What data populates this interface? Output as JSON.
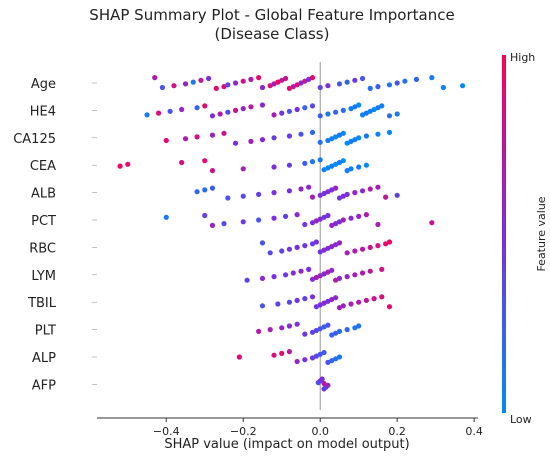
{
  "chart_data": {
    "type": "scatter",
    "title_line1": "SHAP Summary Plot - Global Feature Importance",
    "title_line2": "(Disease Class)",
    "xlabel": "SHAP value (impact on model output)",
    "xlim": [
      -0.58,
      0.41
    ],
    "x_ticks": [
      -0.4,
      -0.2,
      0.0,
      0.2,
      0.4
    ],
    "x_tick_labels": [
      "−0.4",
      "−0.2",
      "0.0",
      "0.2",
      "0.4"
    ],
    "colorbar": {
      "high_label": "High",
      "low_label": "Low",
      "title": "Feature value",
      "high_color": "#ff0052",
      "low_color": "#008bfb"
    },
    "features": [
      {
        "name": "Age",
        "points": [
          [
            -0.43,
            0.7
          ],
          [
            -0.41,
            0.3
          ],
          [
            -0.38,
            0.8
          ],
          [
            -0.35,
            0.6
          ],
          [
            -0.33,
            0.1
          ],
          [
            -0.31,
            0.75
          ],
          [
            -0.29,
            0.5
          ],
          [
            -0.27,
            0.9
          ],
          [
            -0.25,
            0.85
          ],
          [
            -0.24,
            0.4
          ],
          [
            -0.22,
            0.6
          ],
          [
            -0.2,
            0.8
          ],
          [
            -0.18,
            0.7
          ],
          [
            -0.16,
            0.9
          ],
          [
            -0.15,
            0.55
          ],
          [
            -0.13,
            0.85
          ],
          [
            -0.12,
            0.65
          ],
          [
            -0.11,
            0.95
          ],
          [
            -0.1,
            0.75
          ],
          [
            -0.09,
            0.8
          ],
          [
            -0.08,
            0.9
          ],
          [
            -0.07,
            0.7
          ],
          [
            -0.06,
            0.85
          ],
          [
            -0.05,
            0.6
          ],
          [
            -0.04,
            0.75
          ],
          [
            -0.03,
            0.5
          ],
          [
            -0.02,
            0.9
          ],
          [
            0.0,
            0.4
          ],
          [
            0.02,
            0.5
          ],
          [
            0.05,
            0.3
          ],
          [
            0.07,
            0.2
          ],
          [
            0.09,
            0.45
          ],
          [
            0.11,
            0.3
          ],
          [
            0.13,
            0.15
          ],
          [
            0.15,
            0.25
          ],
          [
            0.18,
            0.1
          ],
          [
            0.2,
            0.3
          ],
          [
            0.22,
            0.15
          ],
          [
            0.25,
            0.2
          ],
          [
            0.29,
            0.1
          ],
          [
            0.32,
            0.05
          ],
          [
            0.37,
            0.0
          ]
        ]
      },
      {
        "name": "HE4",
        "points": [
          [
            -0.45,
            0.1
          ],
          [
            -0.42,
            0.85
          ],
          [
            -0.39,
            0.3
          ],
          [
            -0.36,
            0.6
          ],
          [
            -0.32,
            0.2
          ],
          [
            -0.3,
            0.9
          ],
          [
            -0.28,
            0.5
          ],
          [
            -0.26,
            0.7
          ],
          [
            -0.24,
            0.35
          ],
          [
            -0.22,
            0.8
          ],
          [
            -0.2,
            0.6
          ],
          [
            -0.18,
            0.75
          ],
          [
            -0.15,
            0.55
          ],
          [
            -0.12,
            0.65
          ],
          [
            -0.1,
            0.45
          ],
          [
            -0.08,
            0.3
          ],
          [
            -0.06,
            0.5
          ],
          [
            -0.04,
            0.2
          ],
          [
            -0.02,
            0.35
          ],
          [
            0.0,
            0.25
          ],
          [
            0.02,
            0.1
          ],
          [
            0.04,
            0.2
          ],
          [
            0.06,
            0.15
          ],
          [
            0.08,
            0.05
          ],
          [
            0.09,
            0.1
          ],
          [
            0.1,
            0.0
          ],
          [
            0.11,
            0.05
          ],
          [
            0.12,
            0.1
          ],
          [
            0.13,
            0.05
          ],
          [
            0.14,
            0.0
          ],
          [
            0.15,
            0.1
          ],
          [
            0.16,
            0.05
          ],
          [
            0.18,
            0.15
          ],
          [
            0.2,
            0.1
          ]
        ]
      },
      {
        "name": "CA125",
        "points": [
          [
            -0.4,
            0.9
          ],
          [
            -0.35,
            0.7
          ],
          [
            -0.32,
            0.85
          ],
          [
            -0.28,
            0.6
          ],
          [
            -0.25,
            0.8
          ],
          [
            -0.22,
            0.5
          ],
          [
            -0.18,
            0.65
          ],
          [
            -0.15,
            0.55
          ],
          [
            -0.12,
            0.4
          ],
          [
            -0.08,
            0.45
          ],
          [
            -0.05,
            0.3
          ],
          [
            -0.02,
            0.2
          ],
          [
            0.0,
            0.15
          ],
          [
            0.02,
            0.1
          ],
          [
            0.03,
            0.05
          ],
          [
            0.04,
            0.0
          ],
          [
            0.05,
            0.1
          ],
          [
            0.06,
            0.05
          ],
          [
            0.07,
            0.0
          ],
          [
            0.08,
            0.1
          ],
          [
            0.09,
            0.05
          ],
          [
            0.1,
            0.0
          ],
          [
            0.12,
            0.1
          ],
          [
            0.15,
            0.05
          ],
          [
            0.18,
            0.0
          ]
        ]
      },
      {
        "name": "CEA",
        "points": [
          [
            -0.52,
            0.95
          ],
          [
            -0.5,
            0.9
          ],
          [
            -0.36,
            0.85
          ],
          [
            -0.3,
            0.9
          ],
          [
            -0.28,
            0.8
          ],
          [
            -0.2,
            0.65
          ],
          [
            -0.12,
            0.5
          ],
          [
            -0.08,
            0.4
          ],
          [
            -0.04,
            0.25
          ],
          [
            -0.02,
            0.15
          ],
          [
            0.0,
            0.1
          ],
          [
            0.01,
            0.05
          ],
          [
            0.02,
            0.0
          ],
          [
            0.03,
            0.05
          ],
          [
            0.04,
            0.0
          ],
          [
            0.05,
            0.05
          ],
          [
            0.06,
            0.0
          ],
          [
            0.07,
            0.1
          ],
          [
            0.08,
            0.05
          ],
          [
            0.1,
            0.1
          ],
          [
            0.12,
            0.0
          ]
        ]
      },
      {
        "name": "ALB",
        "points": [
          [
            -0.32,
            0.2
          ],
          [
            -0.3,
            0.15
          ],
          [
            -0.28,
            0.25
          ],
          [
            -0.24,
            0.3
          ],
          [
            -0.2,
            0.35
          ],
          [
            -0.16,
            0.4
          ],
          [
            -0.12,
            0.5
          ],
          [
            -0.08,
            0.5
          ],
          [
            -0.05,
            0.6
          ],
          [
            -0.03,
            0.55
          ],
          [
            -0.02,
            0.65
          ],
          [
            0.0,
            0.5
          ],
          [
            0.01,
            0.45
          ],
          [
            0.02,
            0.55
          ],
          [
            0.03,
            0.5
          ],
          [
            0.04,
            0.6
          ],
          [
            0.05,
            0.45
          ],
          [
            0.06,
            0.55
          ],
          [
            0.07,
            0.5
          ],
          [
            0.09,
            0.6
          ],
          [
            0.11,
            0.55
          ],
          [
            0.13,
            0.7
          ],
          [
            0.15,
            0.65
          ],
          [
            0.17,
            0.75
          ],
          [
            0.2,
            0.4
          ]
        ]
      },
      {
        "name": "PCT",
        "points": [
          [
            -0.4,
            0.1
          ],
          [
            -0.3,
            0.4
          ],
          [
            -0.28,
            0.6
          ],
          [
            -0.25,
            0.35
          ],
          [
            -0.2,
            0.45
          ],
          [
            -0.16,
            0.3
          ],
          [
            -0.12,
            0.5
          ],
          [
            -0.09,
            0.4
          ],
          [
            -0.06,
            0.55
          ],
          [
            -0.04,
            0.45
          ],
          [
            -0.02,
            0.5
          ],
          [
            -0.01,
            0.6
          ],
          [
            0.0,
            0.55
          ],
          [
            0.01,
            0.45
          ],
          [
            0.02,
            0.5
          ],
          [
            0.03,
            0.6
          ],
          [
            0.04,
            0.55
          ],
          [
            0.05,
            0.5
          ],
          [
            0.06,
            0.65
          ],
          [
            0.08,
            0.55
          ],
          [
            0.1,
            0.6
          ],
          [
            0.12,
            0.7
          ],
          [
            0.15,
            0.65
          ],
          [
            0.29,
            0.8
          ]
        ]
      },
      {
        "name": "RBC",
        "points": [
          [
            -0.15,
            0.3
          ],
          [
            -0.13,
            0.35
          ],
          [
            -0.1,
            0.4
          ],
          [
            -0.08,
            0.45
          ],
          [
            -0.06,
            0.5
          ],
          [
            -0.04,
            0.45
          ],
          [
            -0.02,
            0.4
          ],
          [
            -0.01,
            0.5
          ],
          [
            0.0,
            0.45
          ],
          [
            0.01,
            0.55
          ],
          [
            0.02,
            0.5
          ],
          [
            0.03,
            0.6
          ],
          [
            0.04,
            0.55
          ],
          [
            0.05,
            0.6
          ],
          [
            0.07,
            0.65
          ],
          [
            0.09,
            0.7
          ],
          [
            0.11,
            0.75
          ],
          [
            0.13,
            0.8
          ],
          [
            0.15,
            0.85
          ],
          [
            0.17,
            0.9
          ],
          [
            0.18,
            0.95
          ]
        ]
      },
      {
        "name": "LYM",
        "points": [
          [
            -0.19,
            0.4
          ],
          [
            -0.15,
            0.55
          ],
          [
            -0.12,
            0.5
          ],
          [
            -0.09,
            0.45
          ],
          [
            -0.07,
            0.55
          ],
          [
            -0.05,
            0.6
          ],
          [
            -0.03,
            0.5
          ],
          [
            -0.02,
            0.55
          ],
          [
            -0.01,
            0.65
          ],
          [
            0.0,
            0.6
          ],
          [
            0.01,
            0.55
          ],
          [
            0.02,
            0.65
          ],
          [
            0.03,
            0.6
          ],
          [
            0.04,
            0.7
          ],
          [
            0.05,
            0.55
          ],
          [
            0.07,
            0.6
          ],
          [
            0.09,
            0.65
          ],
          [
            0.11,
            0.7
          ],
          [
            0.13,
            0.75
          ],
          [
            0.16,
            0.8
          ]
        ]
      },
      {
        "name": "TBIL",
        "points": [
          [
            -0.15,
            0.3
          ],
          [
            -0.11,
            0.4
          ],
          [
            -0.08,
            0.35
          ],
          [
            -0.06,
            0.45
          ],
          [
            -0.04,
            0.4
          ],
          [
            -0.02,
            0.5
          ],
          [
            -0.01,
            0.45
          ],
          [
            0.0,
            0.5
          ],
          [
            0.01,
            0.55
          ],
          [
            0.02,
            0.5
          ],
          [
            0.03,
            0.6
          ],
          [
            0.04,
            0.55
          ],
          [
            0.05,
            0.65
          ],
          [
            0.06,
            0.6
          ],
          [
            0.08,
            0.65
          ],
          [
            0.1,
            0.7
          ],
          [
            0.12,
            0.75
          ],
          [
            0.14,
            0.8
          ],
          [
            0.16,
            0.85
          ],
          [
            0.18,
            0.9
          ]
        ]
      },
      {
        "name": "PLT",
        "points": [
          [
            -0.16,
            0.7
          ],
          [
            -0.13,
            0.65
          ],
          [
            -0.1,
            0.6
          ],
          [
            -0.08,
            0.55
          ],
          [
            -0.06,
            0.5
          ],
          [
            -0.04,
            0.45
          ],
          [
            -0.02,
            0.4
          ],
          [
            -0.01,
            0.35
          ],
          [
            0.0,
            0.3
          ],
          [
            0.01,
            0.25
          ],
          [
            0.02,
            0.3
          ],
          [
            0.03,
            0.2
          ],
          [
            0.04,
            0.25
          ],
          [
            0.05,
            0.15
          ],
          [
            0.07,
            0.2
          ],
          [
            0.09,
            0.1
          ],
          [
            0.1,
            0.15
          ]
        ]
      },
      {
        "name": "ALP",
        "points": [
          [
            -0.21,
            0.9
          ],
          [
            -0.12,
            0.85
          ],
          [
            -0.1,
            0.9
          ],
          [
            -0.08,
            0.75
          ],
          [
            -0.06,
            0.6
          ],
          [
            -0.04,
            0.5
          ],
          [
            -0.02,
            0.45
          ],
          [
            -0.01,
            0.35
          ],
          [
            0.0,
            0.3
          ],
          [
            0.01,
            0.25
          ],
          [
            0.02,
            0.3
          ],
          [
            0.03,
            0.2
          ],
          [
            0.04,
            0.15
          ],
          [
            0.05,
            0.1
          ]
        ]
      },
      {
        "name": "AFP",
        "points": [
          [
            -0.005,
            0.3
          ],
          [
            0.0,
            0.4
          ],
          [
            0.005,
            0.5
          ],
          [
            0.01,
            0.45
          ],
          [
            0.015,
            0.35
          ],
          [
            0.02,
            0.6
          ],
          [
            0.01,
            0.7
          ]
        ]
      }
    ]
  }
}
